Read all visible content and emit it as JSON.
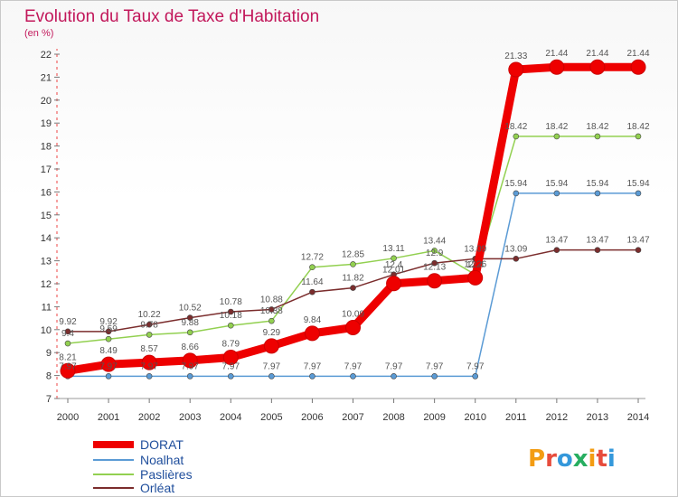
{
  "chart_data": {
    "type": "line",
    "title": "Evolution du Taux de Taxe d'Habitation",
    "subtitle": "(en %)",
    "x": [
      "2000",
      "2001",
      "2002",
      "2003",
      "2004",
      "2005",
      "2006",
      "2007",
      "2008",
      "2009",
      "2010",
      "2011",
      "2012",
      "2013",
      "2014"
    ],
    "y_ticks": [
      7,
      8,
      9,
      10,
      11,
      12,
      13,
      14,
      15,
      16,
      17,
      18,
      19,
      20,
      21,
      22
    ],
    "ylim": [
      7,
      22
    ],
    "grid": false,
    "legend_position": "bottom-left",
    "series": [
      {
        "name": "DORAT",
        "color": "#ee0000",
        "width": 9,
        "marker": 8,
        "values": [
          8.21,
          8.49,
          8.57,
          8.66,
          8.79,
          9.29,
          9.84,
          10.09,
          12.01,
          12.13,
          12.26,
          21.33,
          21.44,
          21.44,
          21.44
        ],
        "labels": [
          "8.21",
          "8.49",
          "8.57",
          "8.66",
          "8.79",
          "9.29",
          "9.84",
          "10.09",
          "12.01",
          "12.13",
          "12.26",
          "21.33",
          "21.44",
          "21.44",
          "21.44"
        ]
      },
      {
        "name": "Noalhat",
        "color": "#5b9bd5",
        "width": 1.5,
        "marker": 3,
        "values": [
          7.97,
          7.97,
          7.97,
          7.97,
          7.97,
          7.97,
          7.97,
          7.97,
          7.97,
          7.97,
          7.97,
          15.94,
          15.94,
          15.94,
          15.94
        ],
        "labels": [
          "7.97",
          "7.97",
          "7.97",
          "7.97",
          "7.97",
          "7.97",
          "7.97",
          "7.97",
          "7.97",
          "7.97",
          "7.97",
          "15.94",
          "15.94",
          "15.94",
          "15.94"
        ]
      },
      {
        "name": "Paslières",
        "color": "#92d050",
        "width": 1.5,
        "marker": 3,
        "values": [
          9.4,
          9.59,
          9.78,
          9.88,
          10.18,
          10.38,
          12.72,
          12.85,
          13.11,
          13.44,
          12.4,
          18.42,
          18.42,
          18.42,
          18.42
        ],
        "labels": [
          "9.4",
          "9.59",
          "9.78",
          "9.88",
          "10.18",
          "10.38",
          "12.72",
          "12.85",
          "13.11",
          "13.44",
          "12.4",
          "18.42",
          "18.42",
          "18.42",
          "18.42"
        ]
      },
      {
        "name": "Orléat",
        "color": "#7b2d2d",
        "width": 1.5,
        "marker": 3,
        "values": [
          9.92,
          9.92,
          10.22,
          10.52,
          10.78,
          10.88,
          11.64,
          11.82,
          12.4,
          12.9,
          13.09,
          13.09,
          13.47,
          13.47,
          13.47
        ],
        "labels": [
          "9.92",
          "9.92",
          "10.22",
          "10.52",
          "10.78",
          "10.88",
          "11.64",
          "11.82",
          "12.4",
          "12.9",
          "13.09",
          "13.09",
          "13.47",
          "13.47",
          "13.47"
        ]
      }
    ]
  },
  "logo": {
    "text": "Proxiti",
    "colors": [
      "#f39c12",
      "#e74c3c",
      "#3498db",
      "#27ae60"
    ]
  }
}
